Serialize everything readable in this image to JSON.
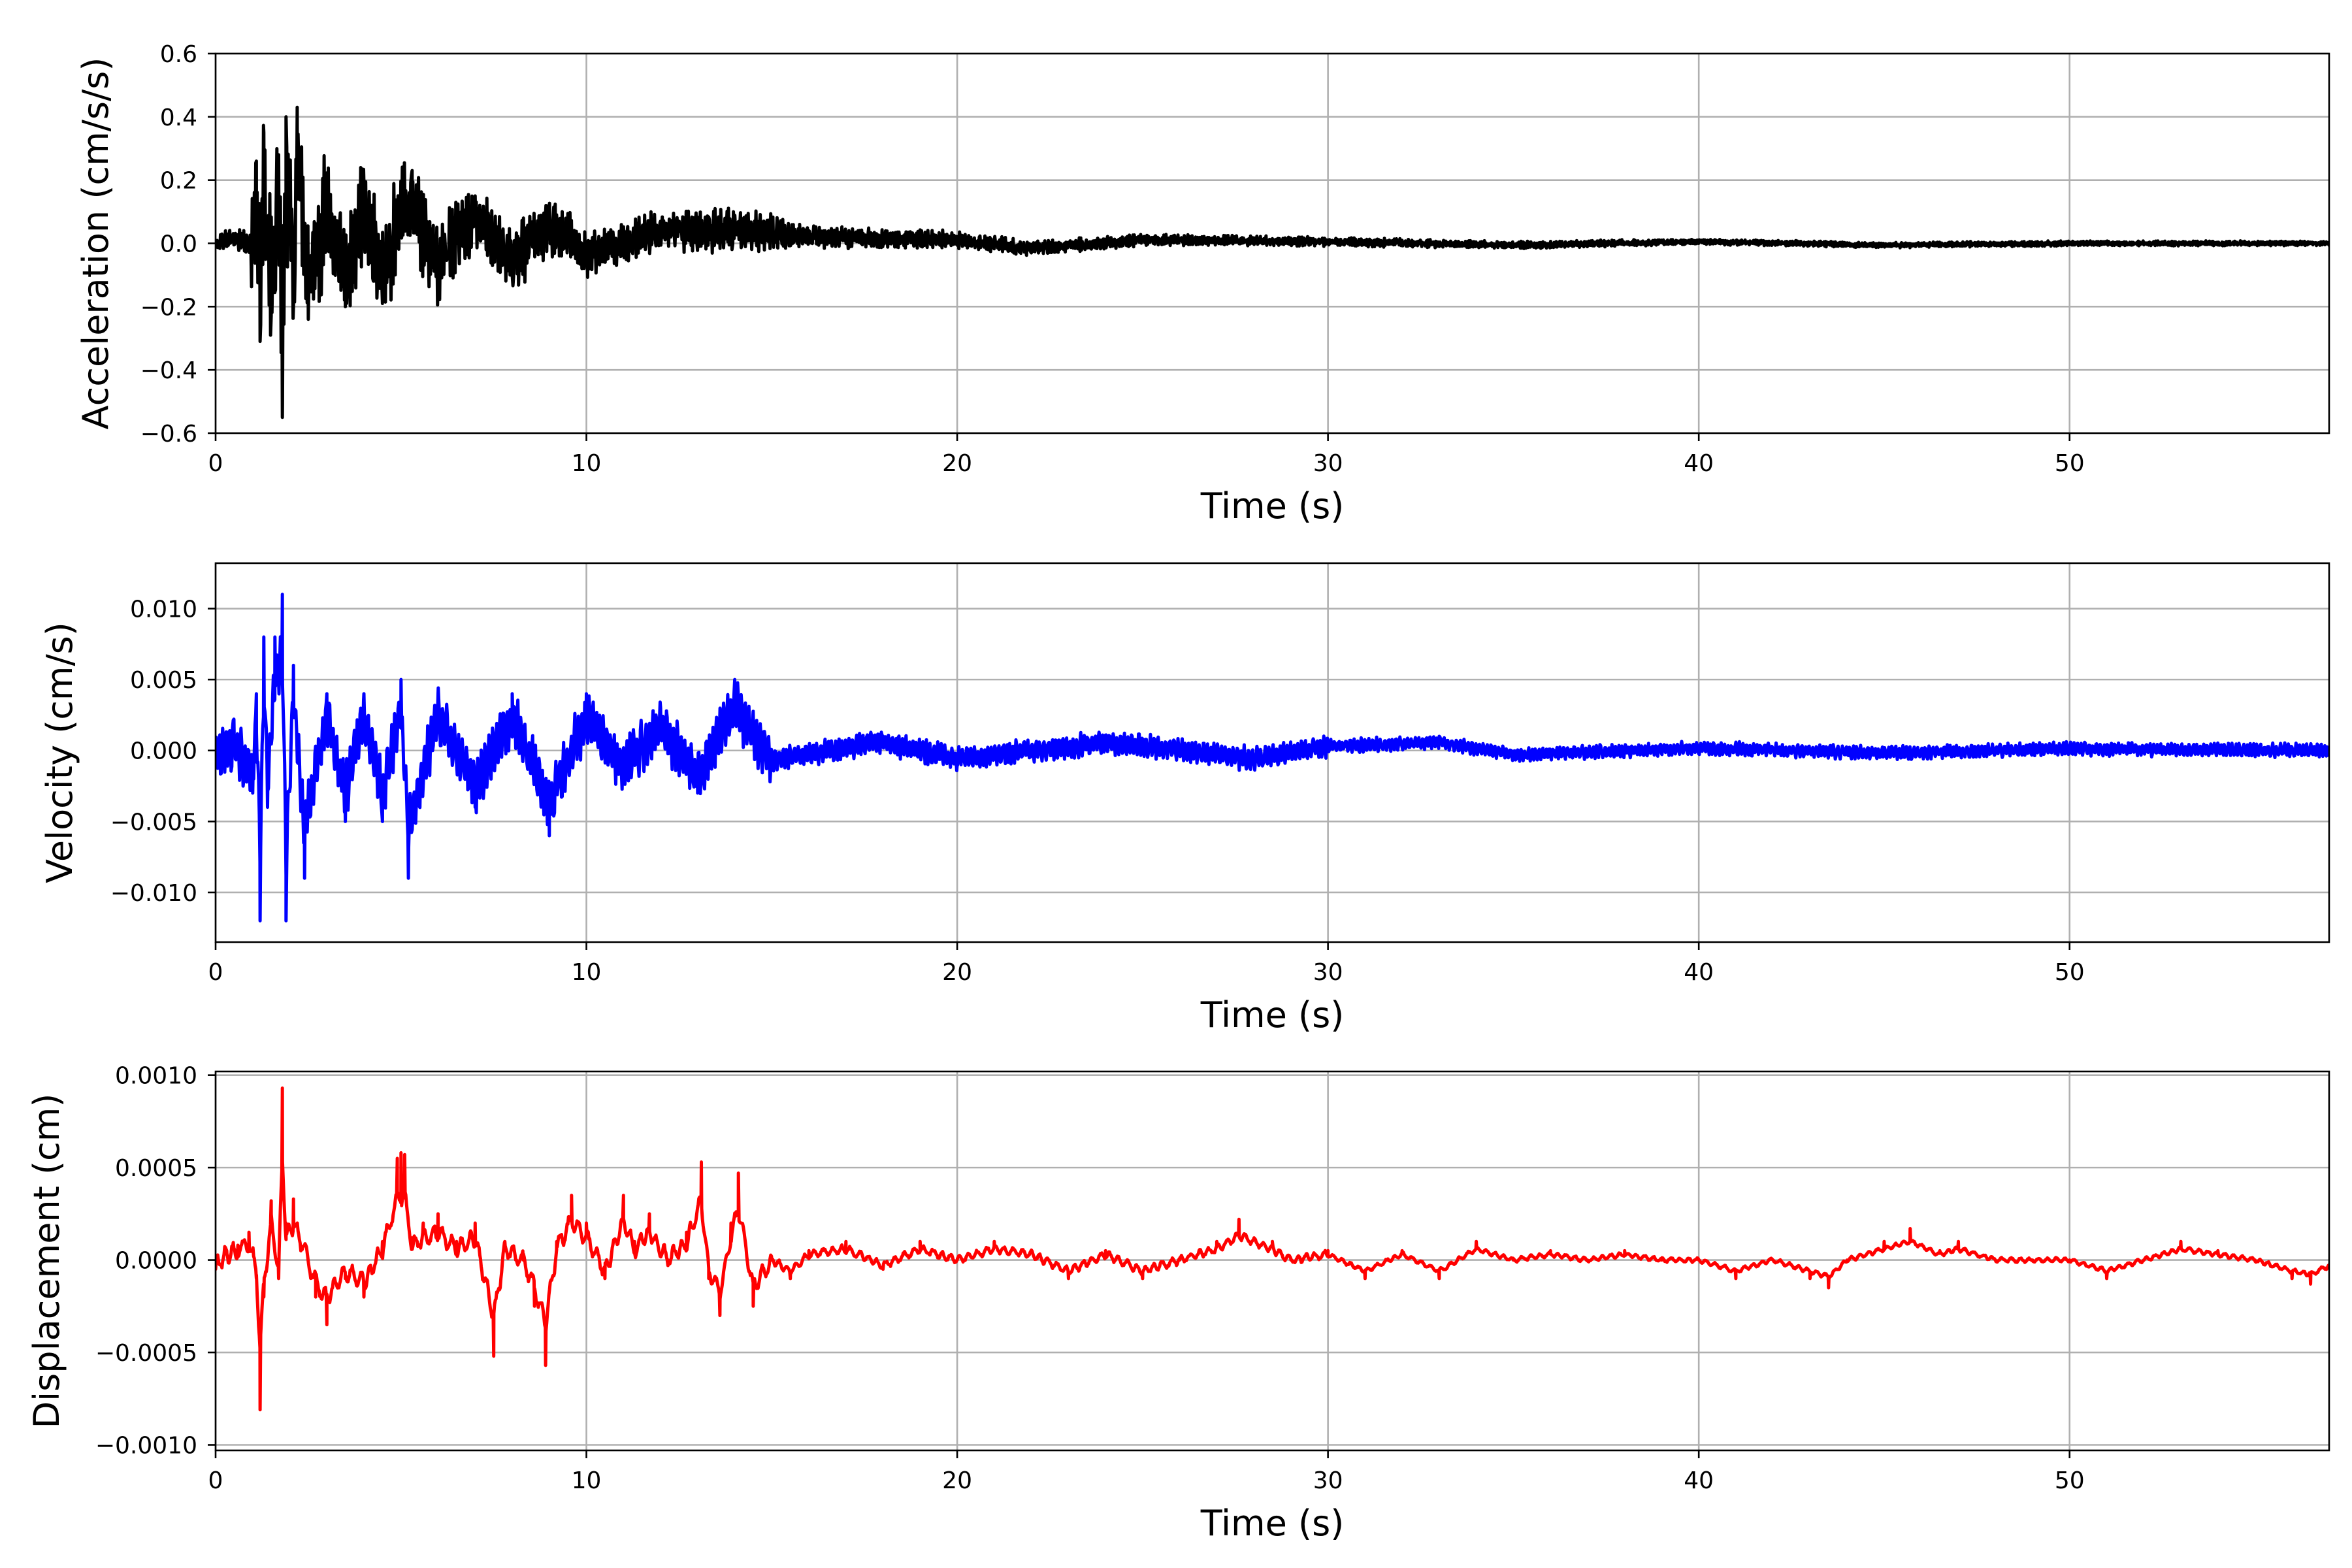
{
  "chart_data": [
    {
      "type": "line",
      "xlabel": "Time (s)",
      "ylabel": "Acceleration (cm/s/s)",
      "xlim": [
        0,
        57
      ],
      "ylim": [
        -0.6,
        0.6
      ],
      "xticks": [
        "0",
        "10",
        "20",
        "30",
        "40",
        "50"
      ],
      "xtick_values": [
        0,
        10,
        20,
        30,
        40,
        50
      ],
      "yticks": [
        "−0.6",
        "−0.4",
        "−0.2",
        "0.0",
        "0.2",
        "0.4",
        "0.6"
      ],
      "ytick_values": [
        -0.6,
        -0.4,
        -0.2,
        0.0,
        0.2,
        0.4,
        0.6
      ],
      "grid": true,
      "color": "#000000",
      "series": [
        {
          "x": [
            0,
            0.5,
            1.0,
            1.1,
            1.2,
            1.3,
            1.5,
            1.7,
            1.8,
            1.9,
            2.1,
            2.2,
            2.5,
            3.0,
            3.5,
            4.0,
            4.5,
            5.0,
            5.3,
            6.0,
            7.0,
            8.0,
            9.0,
            10.0,
            12.0,
            14.0,
            16.0,
            18.0,
            20.0,
            22.0,
            25.0,
            30.0,
            35.0,
            40.0,
            45.0,
            50.0,
            57.0
          ],
          "y": [
            0.0,
            0.03,
            -0.02,
            0.26,
            -0.31,
            0.35,
            -0.23,
            0.28,
            -0.55,
            0.4,
            -0.2,
            0.43,
            -0.24,
            0.2,
            -0.2,
            0.19,
            -0.19,
            0.18,
            0.23,
            -0.12,
            0.15,
            -0.1,
            0.1,
            -0.06,
            0.07,
            0.08,
            0.04,
            0.03,
            0.02,
            -0.03,
            0.02,
            0.01,
            -0.01,
            0.01,
            -0.01,
            0.0,
            0.0
          ],
          "envelope": [
            [
              0,
              0.03
            ],
            [
              0.9,
              0.04
            ],
            [
              1.0,
              0.2
            ],
            [
              1.5,
              0.3
            ],
            [
              2.5,
              0.22
            ],
            [
              4.0,
              0.18
            ],
            [
              5.5,
              0.16
            ],
            [
              7.0,
              0.12
            ],
            [
              9.0,
              0.1
            ],
            [
              12.0,
              0.07
            ],
            [
              14.0,
              0.08
            ],
            [
              16.0,
              0.04
            ],
            [
              20.0,
              0.03
            ],
            [
              25.0,
              0.02
            ],
            [
              30.0,
              0.015
            ],
            [
              40.0,
              0.01
            ],
            [
              57.0,
              0.008
            ]
          ]
        }
      ]
    },
    {
      "type": "line",
      "xlabel": "Time (s)",
      "ylabel": "Velocity (cm/s)",
      "xlim": [
        0,
        57
      ],
      "ylim": [
        -0.0135,
        0.0132
      ],
      "xticks": [
        "0",
        "10",
        "20",
        "30",
        "40",
        "50"
      ],
      "xtick_values": [
        0,
        10,
        20,
        30,
        40,
        50
      ],
      "yticks": [
        "−0.010",
        "−0.005",
        "0.000",
        "0.005",
        "0.010"
      ],
      "ytick_values": [
        -0.01,
        -0.005,
        0.0,
        0.005,
        0.01
      ],
      "grid": true,
      "color": "#0000ff",
      "series": [
        {
          "x": [
            0,
            0.5,
            1.0,
            1.1,
            1.2,
            1.3,
            1.4,
            1.6,
            1.8,
            1.9,
            2.1,
            2.4,
            3.0,
            3.5,
            4.0,
            4.5,
            5.0,
            5.2,
            6.0,
            7.0,
            8.0,
            9.0,
            10.0,
            11.0,
            12.0,
            13.0,
            14.0,
            15.0,
            18.0,
            20.0,
            24.0,
            28.0,
            30.0,
            33.0,
            35.0,
            40.0,
            45.0,
            50.0,
            57.0
          ],
          "y": [
            -0.001,
            0.001,
            -0.003,
            0.004,
            -0.012,
            0.008,
            -0.004,
            0.008,
            0.011,
            -0.012,
            0.006,
            -0.009,
            0.004,
            -0.005,
            0.004,
            -0.005,
            0.005,
            -0.009,
            0.004,
            -0.004,
            0.004,
            -0.006,
            0.004,
            -0.002,
            0.003,
            -0.003,
            0.005,
            -0.001,
            0.001,
            -0.001,
            0.001,
            -0.001,
            0.0005,
            0.001,
            -0.0005,
            0.0003,
            -0.0003,
            0.0002,
            0.0
          ]
        }
      ]
    },
    {
      "type": "line",
      "xlabel": "Time (s)",
      "ylabel": "Displacement (cm)",
      "xlim": [
        0,
        57
      ],
      "ylim": [
        -0.00103,
        0.00102
      ],
      "xticks": [
        "0",
        "10",
        "20",
        "30",
        "40",
        "50"
      ],
      "xtick_values": [
        0,
        10,
        20,
        30,
        40,
        50
      ],
      "yticks": [
        "−0.0010",
        "−0.0005",
        "0.0000",
        "0.0005",
        "0.0010"
      ],
      "ytick_values": [
        -0.001,
        -0.0005,
        0.0,
        0.0005,
        0.001
      ],
      "grid": true,
      "color": "#ff0000",
      "series": [
        {
          "x": [
            0,
            0.3,
            0.6,
            0.9,
            1.1,
            1.2,
            1.3,
            1.5,
            1.7,
            1.8,
            1.9,
            2.1,
            2.4,
            2.7,
            3.0,
            3.5,
            4.0,
            4.5,
            4.9,
            5.0,
            5.1,
            5.3,
            5.6,
            6.0,
            6.5,
            7.0,
            7.5,
            7.8,
            8.3,
            8.6,
            8.9,
            9.2,
            9.6,
            10.0,
            10.5,
            11.0,
            11.3,
            11.7,
            12.2,
            12.7,
            13.1,
            13.3,
            13.6,
            13.9,
            14.1,
            14.5,
            15.0,
            15.5,
            16.0,
            17.0,
            18.0,
            19.0,
            20.0,
            21.0,
            22.0,
            23.0,
            24.0,
            25.0,
            26.0,
            27.0,
            27.6,
            28.5,
            29.0,
            30.0,
            31.0,
            32.0,
            33.0,
            34.0,
            35.0,
            36.0,
            37.0,
            38.0,
            39.0,
            40.0,
            41.0,
            42.0,
            43.0,
            43.5,
            44.0,
            45.0,
            45.7,
            46.5,
            47.0,
            48.0,
            49.0,
            50.0,
            51.0,
            52.0,
            53.0,
            54.0,
            55.0,
            56.0,
            56.5,
            57.0
          ],
          "y": [
            -5e-05,
            5e-05,
            8e-05,
            0.00015,
            -0.0001,
            -0.00081,
            -0.0002,
            0.00032,
            -0.0001,
            0.00093,
            0.0002,
            0.00033,
            8e-05,
            -0.0002,
            -0.00035,
            -0.0001,
            -0.0002,
            0.0001,
            0.00055,
            0.00058,
            0.00057,
            0.00012,
            0.0002,
            0.00025,
            0.0001,
            0.0002,
            -0.00052,
            0.0001,
            0.0,
            -0.00025,
            -0.00057,
            0.0001,
            0.00035,
            0.0002,
            -0.0001,
            0.00035,
            0.0001,
            0.00025,
            0.0,
            0.00015,
            0.00053,
            -0.0001,
            -0.0003,
            0.0002,
            0.00047,
            -0.00025,
            0.0,
            -0.0001,
            5e-05,
            0.0001,
            -5e-05,
            0.0001,
            0.0,
            0.0001,
            5e-05,
            -0.0001,
            5e-05,
            -0.0001,
            0.0,
            0.0001,
            0.00022,
            0.0001,
            0.0,
            5e-05,
            -0.0001,
            5e-05,
            -0.0001,
            0.0001,
            0.0,
            5e-05,
            0.0,
            5e-05,
            0.0,
            0.0,
            -0.0001,
            0.0,
            -0.0001,
            -0.00015,
            0.0,
            0.0001,
            0.00017,
            5e-05,
            0.0001,
            0.0,
            0.0,
            0.0,
            -0.0001,
            0.0,
            0.0001,
            5e-05,
            0.0,
            -0.0001,
            -0.00013,
            -5e-05
          ]
        }
      ]
    }
  ]
}
